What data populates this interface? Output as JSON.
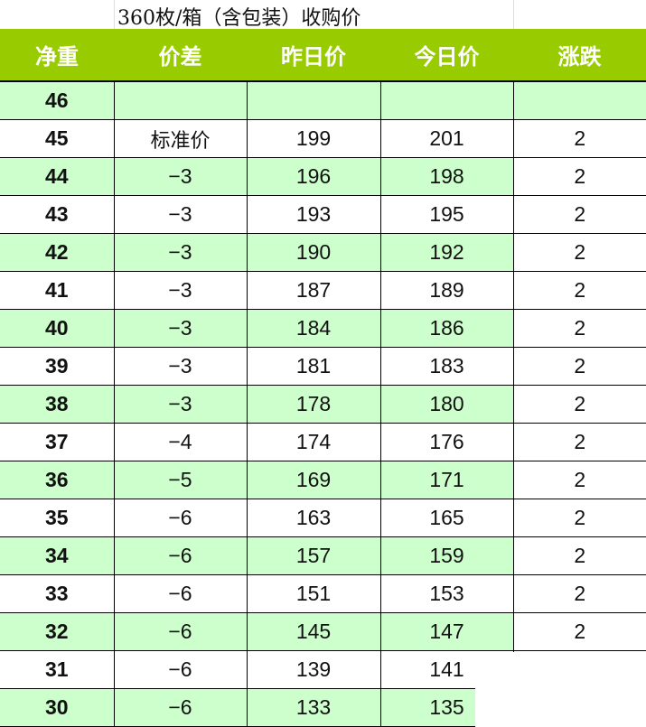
{
  "title": "360枚/箱（含包装）收购价",
  "headers": [
    "净重",
    "价差",
    "昨日价",
    "今日价",
    "涨跌"
  ],
  "colors": {
    "header_bg": "#99cc00",
    "row_alt_bg": "#ccffcc"
  },
  "rows": [
    [
      "46",
      "",
      "",
      "",
      ""
    ],
    [
      "45",
      "标准价",
      "199",
      "201",
      "2"
    ],
    [
      "44",
      "−3",
      "196",
      "198",
      "2"
    ],
    [
      "43",
      "−3",
      "193",
      "195",
      "2"
    ],
    [
      "42",
      "−3",
      "190",
      "192",
      "2"
    ],
    [
      "41",
      "−3",
      "187",
      "189",
      "2"
    ],
    [
      "40",
      "−3",
      "184",
      "186",
      "2"
    ],
    [
      "39",
      "−3",
      "181",
      "183",
      "2"
    ],
    [
      "38",
      "−3",
      "178",
      "180",
      "2"
    ],
    [
      "37",
      "−4",
      "174",
      "176",
      "2"
    ],
    [
      "36",
      "−5",
      "169",
      "171",
      "2"
    ],
    [
      "35",
      "−6",
      "163",
      "165",
      "2"
    ],
    [
      "34",
      "−6",
      "157",
      "159",
      "2"
    ],
    [
      "33",
      "−6",
      "151",
      "153",
      "2"
    ],
    [
      "32",
      "−6",
      "145",
      "147",
      "2"
    ],
    [
      "31",
      "−6",
      "139",
      "141",
      ""
    ],
    [
      "30",
      "−6",
      "133",
      "135",
      ""
    ]
  ]
}
